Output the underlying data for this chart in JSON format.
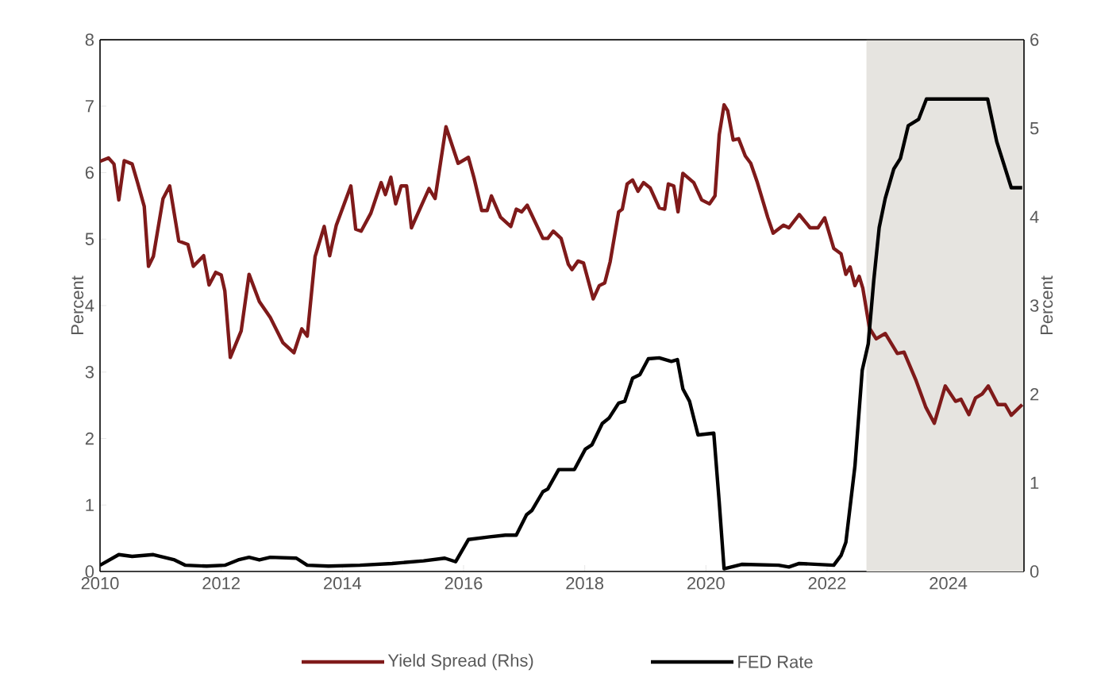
{
  "chart_data": {
    "type": "line",
    "ylabel": "Percent",
    "y2label": "Percent",
    "xlim": [
      2010,
      2025.25
    ],
    "xticks": [
      2010,
      2012,
      2014,
      2016,
      2018,
      2020,
      2022,
      2024
    ],
    "ylim": [
      0,
      8
    ],
    "yticks": [
      0,
      1,
      2,
      3,
      4,
      5,
      6,
      7,
      8
    ],
    "y2lim": [
      0,
      6
    ],
    "y2ticks": [
      0,
      1,
      2,
      3,
      4,
      5,
      6
    ],
    "legend": "bottom",
    "grid": false,
    "marker": "none",
    "line_style": "solid",
    "bands": [
      {
        "axis": "x",
        "from": 2022.65,
        "to": 2025.25,
        "color": "#e6e4e0"
      }
    ],
    "series": [
      {
        "name": "Yield Spread (Rhs)",
        "color": "#7f1a1a",
        "x": [
          2010.0,
          2010.14,
          2010.23,
          2010.31,
          2010.4,
          2010.53,
          2010.62,
          2010.73,
          2010.8,
          2010.88,
          2011.04,
          2011.15,
          2011.3,
          2011.45,
          2011.54,
          2011.71,
          2011.8,
          2011.91,
          2012.0,
          2012.06,
          2012.15,
          2012.33,
          2012.46,
          2012.63,
          2012.81,
          2013.02,
          2013.2,
          2013.33,
          2013.42,
          2013.55,
          2013.7,
          2013.79,
          2013.9,
          2014.14,
          2014.22,
          2014.31,
          2014.47,
          2014.64,
          2014.71,
          2014.8,
          2014.88,
          2014.97,
          2015.06,
          2015.14,
          2015.43,
          2015.53,
          2015.71,
          2015.91,
          2016.08,
          2016.17,
          2016.3,
          2016.39,
          2016.46,
          2016.61,
          2016.78,
          2016.87,
          2016.96,
          2017.05,
          2017.31,
          2017.39,
          2017.48,
          2017.61,
          2017.73,
          2017.79,
          2017.89,
          2017.98,
          2018.14,
          2018.24,
          2018.33,
          2018.42,
          2018.56,
          2018.62,
          2018.7,
          2018.79,
          2018.88,
          2018.97,
          2019.08,
          2019.23,
          2019.32,
          2019.38,
          2019.47,
          2019.54,
          2019.62,
          2019.8,
          2019.93,
          2020.06,
          2020.15,
          2020.22,
          2020.3,
          2020.36,
          2020.45,
          2020.54,
          2020.65,
          2020.74,
          2020.85,
          2021.02,
          2021.11,
          2021.28,
          2021.37,
          2021.54,
          2021.72,
          2021.85,
          2021.96,
          2022.11,
          2022.23,
          2022.31,
          2022.38,
          2022.46,
          2022.53,
          2022.59,
          2022.7,
          2022.81,
          2022.96,
          2023.16,
          2023.27,
          2023.47,
          2023.63,
          2023.77,
          2023.95,
          2024.12,
          2024.21,
          2024.34,
          2024.45,
          2024.56,
          2024.66,
          2024.82,
          2024.94,
          2025.04,
          2025.22
        ],
        "values": [
          6.17,
          6.22,
          6.13,
          5.59,
          6.18,
          6.13,
          5.85,
          5.49,
          4.59,
          4.74,
          5.61,
          5.8,
          4.97,
          4.92,
          4.59,
          4.75,
          4.31,
          4.5,
          4.46,
          4.22,
          3.22,
          3.62,
          4.47,
          4.06,
          3.82,
          3.44,
          3.29,
          3.65,
          3.54,
          4.74,
          5.19,
          4.75,
          5.21,
          5.8,
          5.15,
          5.12,
          5.39,
          5.85,
          5.67,
          5.93,
          5.53,
          5.8,
          5.8,
          5.17,
          5.76,
          5.61,
          6.69,
          6.14,
          6.23,
          5.93,
          5.43,
          5.43,
          5.65,
          5.33,
          5.19,
          5.45,
          5.41,
          5.51,
          5.01,
          5.01,
          5.12,
          5.01,
          4.62,
          4.54,
          4.67,
          4.64,
          4.1,
          4.3,
          4.34,
          4.66,
          5.41,
          5.45,
          5.83,
          5.89,
          5.72,
          5.85,
          5.77,
          5.47,
          5.45,
          5.83,
          5.8,
          5.41,
          5.99,
          5.85,
          5.59,
          5.53,
          5.65,
          6.57,
          7.02,
          6.93,
          6.49,
          6.51,
          6.25,
          6.14,
          5.85,
          5.33,
          5.09,
          5.21,
          5.17,
          5.37,
          5.17,
          5.17,
          5.32,
          4.86,
          4.78,
          4.47,
          4.58,
          4.3,
          4.44,
          4.26,
          3.66,
          3.5,
          3.58,
          3.28,
          3.3,
          2.87,
          2.47,
          2.23,
          2.79,
          2.56,
          2.59,
          2.36,
          2.61,
          2.67,
          2.79,
          2.51,
          2.51,
          2.35,
          2.51
        ]
      },
      {
        "name": "FED Rate",
        "color": "#000000",
        "axis": "y2",
        "x": [
          2010.0,
          2010.31,
          2010.53,
          2010.88,
          2011.23,
          2011.41,
          2011.76,
          2012.06,
          2012.28,
          2012.46,
          2012.63,
          2012.81,
          2013.24,
          2013.42,
          2013.77,
          2014.29,
          2014.82,
          2015.34,
          2015.69,
          2015.87,
          2016.08,
          2016.43,
          2016.69,
          2016.87,
          2017.04,
          2017.13,
          2017.31,
          2017.39,
          2017.57,
          2017.83,
          2018.01,
          2018.12,
          2018.29,
          2018.4,
          2018.56,
          2018.66,
          2018.79,
          2018.91,
          2019.05,
          2019.23,
          2019.43,
          2019.53,
          2019.62,
          2019.73,
          2019.87,
          2020.13,
          2020.22,
          2020.3,
          2020.59,
          2021.2,
          2021.37,
          2021.54,
          2022.11,
          2022.23,
          2022.31,
          2022.46,
          2022.58,
          2022.68,
          2022.77,
          2022.86,
          2022.96,
          2023.1,
          2023.21,
          2023.34,
          2023.51,
          2023.64,
          2024.65,
          2024.8,
          2025.04,
          2025.22
        ],
        "values": [
          0.07,
          0.19,
          0.17,
          0.19,
          0.13,
          0.07,
          0.06,
          0.07,
          0.13,
          0.16,
          0.13,
          0.16,
          0.15,
          0.07,
          0.06,
          0.07,
          0.09,
          0.12,
          0.15,
          0.11,
          0.36,
          0.39,
          0.41,
          0.41,
          0.64,
          0.69,
          0.9,
          0.93,
          1.15,
          1.15,
          1.38,
          1.43,
          1.67,
          1.73,
          1.9,
          1.92,
          2.18,
          2.22,
          2.4,
          2.41,
          2.37,
          2.39,
          2.06,
          1.92,
          1.54,
          1.56,
          0.78,
          0.03,
          0.08,
          0.07,
          0.05,
          0.09,
          0.07,
          0.18,
          0.33,
          1.19,
          2.27,
          2.57,
          3.28,
          3.88,
          4.21,
          4.54,
          4.66,
          5.03,
          5.1,
          5.33,
          5.33,
          4.85,
          4.33,
          4.33
        ]
      }
    ]
  }
}
